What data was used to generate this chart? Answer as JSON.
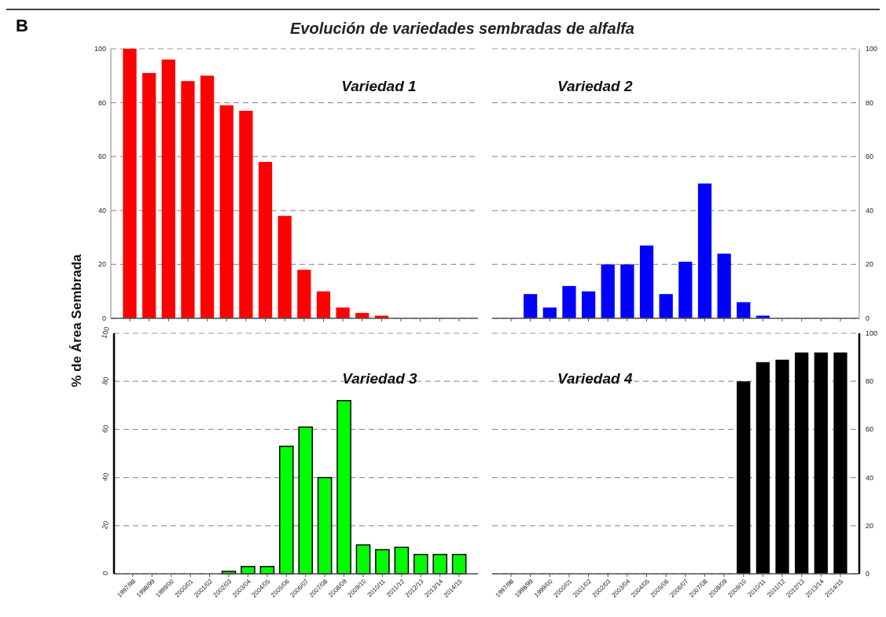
{
  "chart_data": [
    {
      "type": "bar",
      "title": "Variedad 1",
      "ylabel": "% de Área Sembrada",
      "annotations": [
        "B",
        "Evolución de variedades sembradas de alfalfa"
      ],
      "categories": [
        "1997/98",
        "1998/99",
        "1999/00",
        "2000/01",
        "2001/02",
        "2002/03",
        "2003/04",
        "2004/05",
        "2005/06",
        "2006/07",
        "2007/08",
        "2008/09",
        "2009/10",
        "2010/11",
        "2011/12",
        "2012/13",
        "2013/14",
        "2014/15"
      ],
      "values": [
        100,
        91,
        96,
        88,
        90,
        79,
        77,
        58,
        38,
        18,
        10,
        4,
        2,
        1,
        0,
        0,
        0,
        0
      ],
      "color": "#ff0000",
      "ylim": [
        0,
        100
      ],
      "yticks": [
        0,
        20,
        40,
        60,
        80,
        100
      ],
      "grid": "y",
      "tick_labels": "y"
    },
    {
      "type": "bar",
      "title": "Variedad 2",
      "categories": [
        "1997/98",
        "1998/99",
        "1999/00",
        "2000/01",
        "2001/02",
        "2002/03",
        "2003/04",
        "2004/05",
        "2005/06",
        "2006/07",
        "2007/08",
        "2008/09",
        "2009/10",
        "2010/11",
        "2011/12",
        "2012/13",
        "2013/14",
        "2014/15"
      ],
      "values": [
        0,
        9,
        4,
        12,
        10,
        20,
        20,
        27,
        9,
        21,
        50,
        24,
        6,
        1,
        0,
        0,
        0,
        0
      ],
      "color": "#0000ff",
      "ylim": [
        0,
        100
      ],
      "yticks": [
        0,
        20,
        40,
        60,
        80,
        100
      ],
      "grid": "y",
      "tick_labels": "y"
    },
    {
      "type": "bar",
      "title": "Variedad 3",
      "categories": [
        "1997/98",
        "1998/99",
        "1999/00",
        "2000/01",
        "2001/02",
        "2002/03",
        "2003/04",
        "2004/05",
        "2005/06",
        "2006/07",
        "2007/08",
        "2008/09",
        "2009/10",
        "2010/11",
        "2011/12",
        "2012/13",
        "2013/14",
        "2014/15"
      ],
      "values": [
        0,
        0,
        0,
        0,
        0,
        1,
        3,
        3,
        53,
        61,
        40,
        72,
        12,
        10,
        11,
        8,
        8,
        8
      ],
      "color": "#00ff00",
      "ylim": [
        0,
        100
      ],
      "yticks": [
        0,
        20,
        40,
        60,
        80,
        100
      ],
      "grid": "y"
    },
    {
      "type": "bar",
      "title": "Variedad 4",
      "categories": [
        "1997/98",
        "1998/99",
        "1999/00",
        "2000/01",
        "2001/02",
        "2002/03",
        "2003/04",
        "2004/05",
        "2005/06",
        "2006/07",
        "2007/08",
        "2008/09",
        "2009/10",
        "2010/11",
        "2011/12",
        "2012/13",
        "2013/14",
        "2014/15"
      ],
      "values": [
        0,
        0,
        0,
        0,
        0,
        0,
        0,
        0,
        0,
        0,
        0,
        0,
        80,
        88,
        89,
        92,
        92,
        92
      ],
      "color": "#000000",
      "ylim": [
        0,
        100
      ],
      "yticks": [
        0,
        20,
        40,
        60,
        80,
        100
      ],
      "grid": "y"
    }
  ]
}
